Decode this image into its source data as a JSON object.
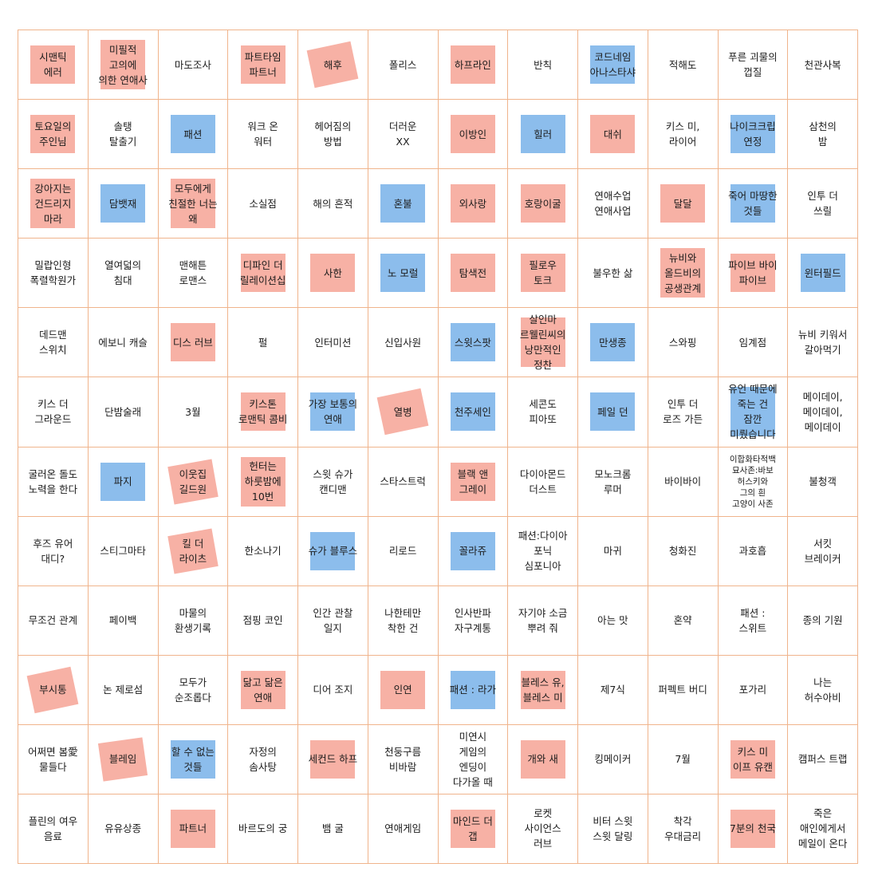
{
  "colors": {
    "grid_line": "#f0b48c",
    "red_highlight": "#f6a89b",
    "blue_highlight": "#7fb6ea"
  },
  "cells": [
    {
      "text": "시맨틱\n에러",
      "hl": "red",
      "rot": 0
    },
    {
      "text": "미필적\n고의에\n의한 연애사",
      "hl": "red",
      "rot": 0
    },
    {
      "text": "마도조사",
      "hl": "",
      "rot": 0
    },
    {
      "text": "파트타임\n파트너",
      "hl": "red",
      "rot": 0
    },
    {
      "text": "해후",
      "hl": "red",
      "rot": -12
    },
    {
      "text": "폴리스",
      "hl": "",
      "rot": 0
    },
    {
      "text": "하프라인",
      "hl": "red",
      "rot": 0
    },
    {
      "text": "반칙",
      "hl": "",
      "rot": 0
    },
    {
      "text": "코드네임\n아나스타샤",
      "hl": "blue",
      "rot": 0
    },
    {
      "text": "적해도",
      "hl": "",
      "rot": 0
    },
    {
      "text": "푸른 괴물의\n껍질",
      "hl": "",
      "rot": 0
    },
    {
      "text": "천관사복",
      "hl": "",
      "rot": 0
    },
    {
      "text": "토요일의\n주인님",
      "hl": "red",
      "rot": 0
    },
    {
      "text": "솔탱\n탈출기",
      "hl": "",
      "rot": 0
    },
    {
      "text": "패션",
      "hl": "blue",
      "rot": 0
    },
    {
      "text": "워크 온\n워터",
      "hl": "",
      "rot": 0
    },
    {
      "text": "헤어짐의\n방법",
      "hl": "",
      "rot": 0
    },
    {
      "text": "더러운\nXX",
      "hl": "",
      "rot": 0
    },
    {
      "text": "이방인",
      "hl": "red",
      "rot": 0
    },
    {
      "text": "힐러",
      "hl": "blue",
      "rot": 0
    },
    {
      "text": "대쉬",
      "hl": "red",
      "rot": 0
    },
    {
      "text": "키스 미,\n라이어",
      "hl": "",
      "rot": 0
    },
    {
      "text": "나이크크립\n연정",
      "hl": "blue",
      "rot": 0
    },
    {
      "text": "삼천의\n밤",
      "hl": "",
      "rot": 0
    },
    {
      "text": "강아지는\n건드리지\n마라",
      "hl": "red",
      "rot": 0
    },
    {
      "text": "담뱃재",
      "hl": "blue",
      "rot": 0
    },
    {
      "text": "모두에게\n친절한 너는\n왜",
      "hl": "red",
      "rot": 0
    },
    {
      "text": "소실점",
      "hl": "",
      "rot": 0
    },
    {
      "text": "해의 흔적",
      "hl": "",
      "rot": 0
    },
    {
      "text": "혼불",
      "hl": "blue",
      "rot": 0
    },
    {
      "text": "외사랑",
      "hl": "red",
      "rot": 0
    },
    {
      "text": "호랑이굴",
      "hl": "red",
      "rot": 0
    },
    {
      "text": "연애수업\n연애사업",
      "hl": "",
      "rot": 0
    },
    {
      "text": "달달",
      "hl": "red",
      "rot": 0
    },
    {
      "text": "죽어 마땅한\n것들",
      "hl": "blue",
      "rot": 0
    },
    {
      "text": "인투 더\n쓰릴",
      "hl": "",
      "rot": 0
    },
    {
      "text": "밀랍인형\n폭렬학원가",
      "hl": "",
      "rot": 0
    },
    {
      "text": "열여덟의\n침대",
      "hl": "",
      "rot": 0
    },
    {
      "text": "맨해튼\n로맨스",
      "hl": "",
      "rot": 0
    },
    {
      "text": "디파인 더\n릴레이션십",
      "hl": "red",
      "rot": 0
    },
    {
      "text": "사한",
      "hl": "red",
      "rot": 0
    },
    {
      "text": "노 모럴",
      "hl": "blue",
      "rot": 0
    },
    {
      "text": "탐색전",
      "hl": "red",
      "rot": 0
    },
    {
      "text": "필로우\n토크",
      "hl": "red",
      "rot": 0
    },
    {
      "text": "불우한 삶",
      "hl": "",
      "rot": 0
    },
    {
      "text": "뉴비와\n올드비의\n공생관계",
      "hl": "red",
      "rot": 0
    },
    {
      "text": "파이브 바이\n파이브",
      "hl": "red",
      "rot": 0
    },
    {
      "text": "윈터필드",
      "hl": "blue",
      "rot": 0
    },
    {
      "text": "데드맨\n스위치",
      "hl": "",
      "rot": 0
    },
    {
      "text": "에보니 캐슬",
      "hl": "",
      "rot": 0
    },
    {
      "text": "디스 러브",
      "hl": "red",
      "rot": 0
    },
    {
      "text": "펄",
      "hl": "",
      "rot": 0
    },
    {
      "text": "인터미션",
      "hl": "",
      "rot": 0
    },
    {
      "text": "신입사원",
      "hl": "",
      "rot": 0
    },
    {
      "text": "스윗스팟",
      "hl": "blue",
      "rot": 0
    },
    {
      "text": "살인마\n르웰린씨의\n낭만적인\n정찬",
      "hl": "red",
      "rot": 0
    },
    {
      "text": "만생종",
      "hl": "blue",
      "rot": 0
    },
    {
      "text": "스와핑",
      "hl": "",
      "rot": 0
    },
    {
      "text": "임계점",
      "hl": "",
      "rot": 0
    },
    {
      "text": "뉴비 키워서\n갈아먹기",
      "hl": "",
      "rot": 0
    },
    {
      "text": "키스 더\n그라운드",
      "hl": "",
      "rot": 0
    },
    {
      "text": "단밤술래",
      "hl": "",
      "rot": 0
    },
    {
      "text": "3월",
      "hl": "",
      "rot": 0
    },
    {
      "text": "키스톤\n로맨틱 콤비",
      "hl": "red",
      "rot": 0
    },
    {
      "text": "가장 보통의\n연애",
      "hl": "blue",
      "rot": 0
    },
    {
      "text": "열병",
      "hl": "red",
      "rot": -12
    },
    {
      "text": "천주세인",
      "hl": "blue",
      "rot": 0
    },
    {
      "text": "세콘도\n피아또",
      "hl": "",
      "rot": 0
    },
    {
      "text": "페일 던",
      "hl": "blue",
      "rot": 0
    },
    {
      "text": "인투 더\n로즈 가든",
      "hl": "",
      "rot": 0
    },
    {
      "text": "유언 때문에\n죽는 건\n잠깐\n미뤘습니다",
      "hl": "blue",
      "rot": 0
    },
    {
      "text": "메이데이,\n메이데이,\n메이데이",
      "hl": "",
      "rot": 0
    },
    {
      "text": "굴러온 돌도\n노력을 한다",
      "hl": "",
      "rot": 0
    },
    {
      "text": "파지",
      "hl": "blue",
      "rot": 0
    },
    {
      "text": "이웃집\n길드원",
      "hl": "red",
      "rot": -10
    },
    {
      "text": "헌터는\n하룻밤에\n10번",
      "hl": "red",
      "rot": 0
    },
    {
      "text": "스윗 슈가\n캔디맨",
      "hl": "",
      "rot": 0
    },
    {
      "text": "스타스트럭",
      "hl": "",
      "rot": 0
    },
    {
      "text": "블랙 앤\n그레이",
      "hl": "red",
      "rot": 0
    },
    {
      "text": "다이아몬드\n더스트",
      "hl": "",
      "rot": 0
    },
    {
      "text": "모노크롬\n루머",
      "hl": "",
      "rot": 0
    },
    {
      "text": "바이바이",
      "hl": "",
      "rot": 0
    },
    {
      "text": "이합화타적백\n묘사존:바보\n허스키와\n그의 흰\n고양이 사존",
      "hl": "",
      "rot": 0,
      "small": true
    },
    {
      "text": "불청객",
      "hl": "",
      "rot": 0
    },
    {
      "text": "후즈 유어\n대디?",
      "hl": "",
      "rot": 0
    },
    {
      "text": "스티그마타",
      "hl": "",
      "rot": 0
    },
    {
      "text": "킬 더\n라이츠",
      "hl": "red",
      "rot": -10
    },
    {
      "text": "한소나기",
      "hl": "",
      "rot": 0
    },
    {
      "text": "슈가 블루스",
      "hl": "blue",
      "rot": 0
    },
    {
      "text": "리로드",
      "hl": "",
      "rot": 0
    },
    {
      "text": "꼴라쥬",
      "hl": "blue",
      "rot": 0
    },
    {
      "text": "패션:다이아\n포닉\n심포니아",
      "hl": "",
      "rot": 0
    },
    {
      "text": "마귀",
      "hl": "",
      "rot": 0
    },
    {
      "text": "청화진",
      "hl": "",
      "rot": 0
    },
    {
      "text": "과호흡",
      "hl": "",
      "rot": 0
    },
    {
      "text": "서킷\n브레이커",
      "hl": "",
      "rot": 0
    },
    {
      "text": "무조건 관계",
      "hl": "",
      "rot": 0
    },
    {
      "text": "페이백",
      "hl": "",
      "rot": 0
    },
    {
      "text": "마물의\n환생기록",
      "hl": "",
      "rot": 0
    },
    {
      "text": "점핑 코인",
      "hl": "",
      "rot": 0
    },
    {
      "text": "인간 관찰\n일지",
      "hl": "",
      "rot": 0
    },
    {
      "text": "나한테만\n착한 건",
      "hl": "",
      "rot": 0
    },
    {
      "text": "인사반파\n자구계통",
      "hl": "",
      "rot": 0
    },
    {
      "text": "자기야 소금\n뿌려 줘",
      "hl": "",
      "rot": 0
    },
    {
      "text": "아는 맛",
      "hl": "",
      "rot": 0
    },
    {
      "text": "혼약",
      "hl": "",
      "rot": 0
    },
    {
      "text": "패션 :\n스위트",
      "hl": "",
      "rot": 0
    },
    {
      "text": "종의 기원",
      "hl": "",
      "rot": 0
    },
    {
      "text": "부시통",
      "hl": "red",
      "rot": -12
    },
    {
      "text": "논 제로섬",
      "hl": "",
      "rot": 0
    },
    {
      "text": "모두가\n순조롭다",
      "hl": "",
      "rot": 0
    },
    {
      "text": "닮고 닮은\n연애",
      "hl": "red",
      "rot": 0
    },
    {
      "text": "디어 조지",
      "hl": "",
      "rot": 0
    },
    {
      "text": "인연",
      "hl": "red",
      "rot": 0
    },
    {
      "text": "패션 : 라가",
      "hl": "blue",
      "rot": 0
    },
    {
      "text": "블레스 유,\n블레스 미",
      "hl": "red",
      "rot": 0
    },
    {
      "text": "제7식",
      "hl": "",
      "rot": 0
    },
    {
      "text": "퍼펙트 버디",
      "hl": "",
      "rot": 0
    },
    {
      "text": "포가리",
      "hl": "",
      "rot": 0
    },
    {
      "text": "나는\n허수아비",
      "hl": "",
      "rot": 0
    },
    {
      "text": "어쩌면 봄愛\n물들다",
      "hl": "",
      "rot": 0
    },
    {
      "text": "블레임",
      "hl": "red",
      "rot": -8
    },
    {
      "text": "할 수 없는\n것들",
      "hl": "blue",
      "rot": 0
    },
    {
      "text": "자정의\n솜사탕",
      "hl": "",
      "rot": 0
    },
    {
      "text": "세컨드 하프",
      "hl": "red",
      "rot": 0
    },
    {
      "text": "천둥구름\n비바람",
      "hl": "",
      "rot": 0
    },
    {
      "text": "미연시\n게임의\n엔딩이\n다가올 때",
      "hl": "",
      "rot": 0
    },
    {
      "text": "개와 새",
      "hl": "red",
      "rot": 0
    },
    {
      "text": "킹메이커",
      "hl": "",
      "rot": 0
    },
    {
      "text": "7월",
      "hl": "",
      "rot": 0
    },
    {
      "text": "키스 미\n이프 유캔",
      "hl": "red",
      "rot": 0
    },
    {
      "text": "캠퍼스 트랩",
      "hl": "",
      "rot": 0
    },
    {
      "text": "플린의 여우\n음료",
      "hl": "",
      "rot": 0
    },
    {
      "text": "유유상종",
      "hl": "",
      "rot": 0
    },
    {
      "text": "파트너",
      "hl": "red",
      "rot": 0
    },
    {
      "text": "바르도의 궁",
      "hl": "",
      "rot": 0
    },
    {
      "text": "뱀 굴",
      "hl": "",
      "rot": 0
    },
    {
      "text": "연애게임",
      "hl": "",
      "rot": 0
    },
    {
      "text": "마인드 더\n갭",
      "hl": "red",
      "rot": 0
    },
    {
      "text": "로켓\n사이언스\n러브",
      "hl": "",
      "rot": 0
    },
    {
      "text": "비터 스윗\n스윗 달링",
      "hl": "",
      "rot": 0
    },
    {
      "text": "착각\n우대금리",
      "hl": "",
      "rot": 0
    },
    {
      "text": "7분의 천국",
      "hl": "red",
      "rot": 0
    },
    {
      "text": "죽은\n애인에게서\n메일이 온다",
      "hl": "",
      "rot": 0
    }
  ]
}
